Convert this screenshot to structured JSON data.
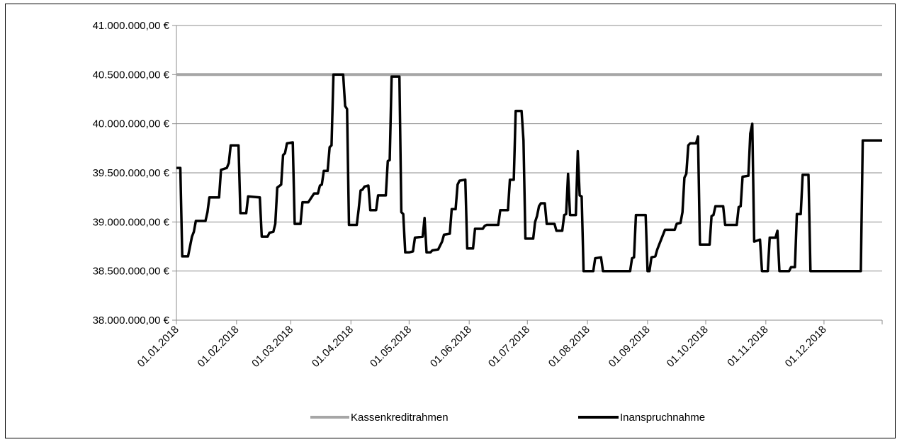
{
  "chart_data": {
    "type": "line",
    "title": "",
    "xlabel": "",
    "ylabel": "",
    "ylim": [
      38000000,
      41000000
    ],
    "y_ticks": [
      {
        "value": 38000000,
        "label": "38.000.000,00 €"
      },
      {
        "value": 38500000,
        "label": "38.500.000,00 €"
      },
      {
        "value": 39000000,
        "label": "39.000.000,00 €"
      },
      {
        "value": 39500000,
        "label": "39.500.000,00 €"
      },
      {
        "value": 40000000,
        "label": "40.000.000,00 €"
      },
      {
        "value": 40500000,
        "label": "40.500.000,00 €"
      },
      {
        "value": 41000000,
        "label": "41.000.000,00 €"
      }
    ],
    "x_ticks": [
      "01.01.2018",
      "01.02.2018",
      "01.03.2018",
      "01.04.2018",
      "01.05.2018",
      "01.06.2018",
      "01.07.2018",
      "01.08.2018",
      "01.09.2018",
      "01.10.2018",
      "01.11.2018",
      "01.12.2018"
    ],
    "x_range": [
      "01.01.2018",
      "31.12.2018"
    ],
    "grid": true,
    "legend_position": "bottom",
    "series": [
      {
        "name": "Kassenkreditrahmen",
        "color": "#a6a6a6",
        "points": [
          [
            "01.01.2018",
            40500000
          ],
          [
            "31.12.2018",
            40500000
          ]
        ]
      },
      {
        "name": "Inanspruchnahme",
        "color": "#000000",
        "points": [
          [
            "01.01.2018",
            39550000
          ],
          [
            "03.01.2018",
            39550000
          ],
          [
            "04.01.2018",
            38650000
          ],
          [
            "07.01.2018",
            38650000
          ],
          [
            "09.01.2018",
            38850000
          ],
          [
            "10.01.2018",
            38900000
          ],
          [
            "11.01.2018",
            39010000
          ],
          [
            "16.01.2018",
            39010000
          ],
          [
            "17.01.2018",
            39100000
          ],
          [
            "18.01.2018",
            39250000
          ],
          [
            "23.01.2018",
            39250000
          ],
          [
            "24.01.2018",
            39530000
          ],
          [
            "27.01.2018",
            39550000
          ],
          [
            "28.01.2018",
            39600000
          ],
          [
            "29.01.2018",
            39780000
          ],
          [
            "02.02.2018",
            39780000
          ],
          [
            "03.02.2018",
            39090000
          ],
          [
            "06.02.2018",
            39090000
          ],
          [
            "07.02.2018",
            39260000
          ],
          [
            "13.02.2018",
            39250000
          ],
          [
            "14.02.2018",
            38850000
          ],
          [
            "17.02.2018",
            38850000
          ],
          [
            "18.02.2018",
            38890000
          ],
          [
            "20.02.2018",
            38900000
          ],
          [
            "21.02.2018",
            38980000
          ],
          [
            "22.02.2018",
            39350000
          ],
          [
            "24.02.2018",
            39380000
          ],
          [
            "25.02.2018",
            39680000
          ],
          [
            "26.02.2018",
            39700000
          ],
          [
            "27.02.2018",
            39800000
          ],
          [
            "02.03.2018",
            39810000
          ],
          [
            "03.03.2018",
            38980000
          ],
          [
            "06.03.2018",
            38980000
          ],
          [
            "07.03.2018",
            39200000
          ],
          [
            "10.03.2018",
            39200000
          ],
          [
            "13.03.2018",
            39290000
          ],
          [
            "15.03.2018",
            39290000
          ],
          [
            "16.03.2018",
            39370000
          ],
          [
            "17.03.2018",
            39380000
          ],
          [
            "18.03.2018",
            39520000
          ],
          [
            "20.03.2018",
            39520000
          ],
          [
            "21.03.2018",
            39760000
          ],
          [
            "22.03.2018",
            39780000
          ],
          [
            "23.03.2018",
            40500000
          ],
          [
            "28.03.2018",
            40500000
          ],
          [
            "29.03.2018",
            40180000
          ],
          [
            "30.03.2018",
            40150000
          ],
          [
            "31.03.2018",
            38970000
          ],
          [
            "04.04.2018",
            38970000
          ],
          [
            "05.04.2018",
            39130000
          ],
          [
            "06.04.2018",
            39320000
          ],
          [
            "07.04.2018",
            39330000
          ],
          [
            "08.04.2018",
            39360000
          ],
          [
            "10.04.2018",
            39370000
          ],
          [
            "11.04.2018",
            39120000
          ],
          [
            "14.04.2018",
            39120000
          ],
          [
            "15.04.2018",
            39270000
          ],
          [
            "19.04.2018",
            39270000
          ],
          [
            "20.04.2018",
            39620000
          ],
          [
            "21.04.2018",
            39630000
          ],
          [
            "22.04.2018",
            40480000
          ],
          [
            "26.04.2018",
            40480000
          ],
          [
            "27.04.2018",
            39100000
          ],
          [
            "28.04.2018",
            39080000
          ],
          [
            "29.04.2018",
            38690000
          ],
          [
            "01.05.2018",
            38690000
          ],
          [
            "03.05.2018",
            38700000
          ],
          [
            "04.05.2018",
            38840000
          ],
          [
            "08.05.2018",
            38850000
          ],
          [
            "09.05.2018",
            39040000
          ],
          [
            "10.05.2018",
            38690000
          ],
          [
            "12.05.2018",
            38690000
          ],
          [
            "13.05.2018",
            38710000
          ],
          [
            "16.05.2018",
            38720000
          ],
          [
            "18.05.2018",
            38800000
          ],
          [
            "19.05.2018",
            38870000
          ],
          [
            "22.05.2018",
            38880000
          ],
          [
            "23.05.2018",
            39130000
          ],
          [
            "25.05.2018",
            39130000
          ],
          [
            "26.05.2018",
            39380000
          ],
          [
            "27.05.2018",
            39420000
          ],
          [
            "30.05.2018",
            39430000
          ],
          [
            "31.05.2018",
            38730000
          ],
          [
            "03.06.2018",
            38730000
          ],
          [
            "04.06.2018",
            38930000
          ],
          [
            "08.06.2018",
            38930000
          ],
          [
            "09.06.2018",
            38960000
          ],
          [
            "10.06.2018",
            38970000
          ],
          [
            "16.06.2018",
            38970000
          ],
          [
            "17.06.2018",
            39120000
          ],
          [
            "21.06.2018",
            39120000
          ],
          [
            "22.06.2018",
            39430000
          ],
          [
            "24.06.2018",
            39430000
          ],
          [
            "25.06.2018",
            40130000
          ],
          [
            "28.06.2018",
            40130000
          ],
          [
            "29.06.2018",
            39830000
          ],
          [
            "30.06.2018",
            38830000
          ],
          [
            "04.07.2018",
            38830000
          ],
          [
            "05.07.2018",
            39000000
          ],
          [
            "06.07.2018",
            39060000
          ],
          [
            "07.07.2018",
            39160000
          ],
          [
            "08.07.2018",
            39190000
          ],
          [
            "10.07.2018",
            39190000
          ],
          [
            "11.07.2018",
            38980000
          ],
          [
            "15.07.2018",
            38980000
          ],
          [
            "16.07.2018",
            38910000
          ],
          [
            "19.07.2018",
            38910000
          ],
          [
            "20.07.2018",
            39070000
          ],
          [
            "21.07.2018",
            39080000
          ],
          [
            "22.07.2018",
            39490000
          ],
          [
            "23.07.2018",
            39070000
          ],
          [
            "26.07.2018",
            39070000
          ],
          [
            "27.07.2018",
            39720000
          ],
          [
            "28.07.2018",
            39270000
          ],
          [
            "29.07.2018",
            39260000
          ],
          [
            "30.07.2018",
            38500000
          ],
          [
            "04.08.2018",
            38500000
          ],
          [
            "05.08.2018",
            38630000
          ],
          [
            "08.08.2018",
            38640000
          ],
          [
            "09.08.2018",
            38500000
          ],
          [
            "23.08.2018",
            38500000
          ],
          [
            "24.08.2018",
            38630000
          ],
          [
            "25.08.2018",
            38640000
          ],
          [
            "26.08.2018",
            39070000
          ],
          [
            "31.08.2018",
            39070000
          ],
          [
            "01.09.2018",
            38500000
          ],
          [
            "02.09.2018",
            38500000
          ],
          [
            "03.09.2018",
            38640000
          ],
          [
            "05.09.2018",
            38650000
          ],
          [
            "06.09.2018",
            38720000
          ],
          [
            "07.09.2018",
            38770000
          ],
          [
            "10.09.2018",
            38920000
          ],
          [
            "15.09.2018",
            38920000
          ],
          [
            "16.09.2018",
            38980000
          ],
          [
            "18.09.2018",
            38990000
          ],
          [
            "19.09.2018",
            39100000
          ],
          [
            "20.09.2018",
            39450000
          ],
          [
            "21.09.2018",
            39490000
          ],
          [
            "22.09.2018",
            39780000
          ],
          [
            "23.09.2018",
            39800000
          ],
          [
            "26.09.2018",
            39800000
          ],
          [
            "27.09.2018",
            39870000
          ],
          [
            "28.09.2018",
            38770000
          ],
          [
            "03.10.2018",
            38770000
          ],
          [
            "04.10.2018",
            39060000
          ],
          [
            "05.10.2018",
            39070000
          ],
          [
            "06.10.2018",
            39160000
          ],
          [
            "10.10.2018",
            39160000
          ],
          [
            "11.10.2018",
            38970000
          ],
          [
            "17.10.2018",
            38970000
          ],
          [
            "18.10.2018",
            39150000
          ],
          [
            "19.10.2018",
            39160000
          ],
          [
            "20.10.2018",
            39460000
          ],
          [
            "23.10.2018",
            39470000
          ],
          [
            "24.10.2018",
            39900000
          ],
          [
            "25.10.2018",
            40000000
          ],
          [
            "26.10.2018",
            38800000
          ],
          [
            "29.10.2018",
            38820000
          ],
          [
            "30.10.2018",
            38500000
          ],
          [
            "02.11.2018",
            38500000
          ],
          [
            "03.11.2018",
            38840000
          ],
          [
            "06.11.2018",
            38840000
          ],
          [
            "07.11.2018",
            38910000
          ],
          [
            "08.11.2018",
            38500000
          ],
          [
            "13.11.2018",
            38500000
          ],
          [
            "14.11.2018",
            38540000
          ],
          [
            "16.11.2018",
            38540000
          ],
          [
            "17.11.2018",
            39080000
          ],
          [
            "19.11.2018",
            39080000
          ],
          [
            "20.11.2018",
            39480000
          ],
          [
            "23.11.2018",
            39480000
          ],
          [
            "24.11.2018",
            38500000
          ],
          [
            "20.12.2018",
            38500000
          ],
          [
            "21.12.2018",
            39830000
          ],
          [
            "31.12.2018",
            39830000
          ]
        ]
      }
    ]
  }
}
